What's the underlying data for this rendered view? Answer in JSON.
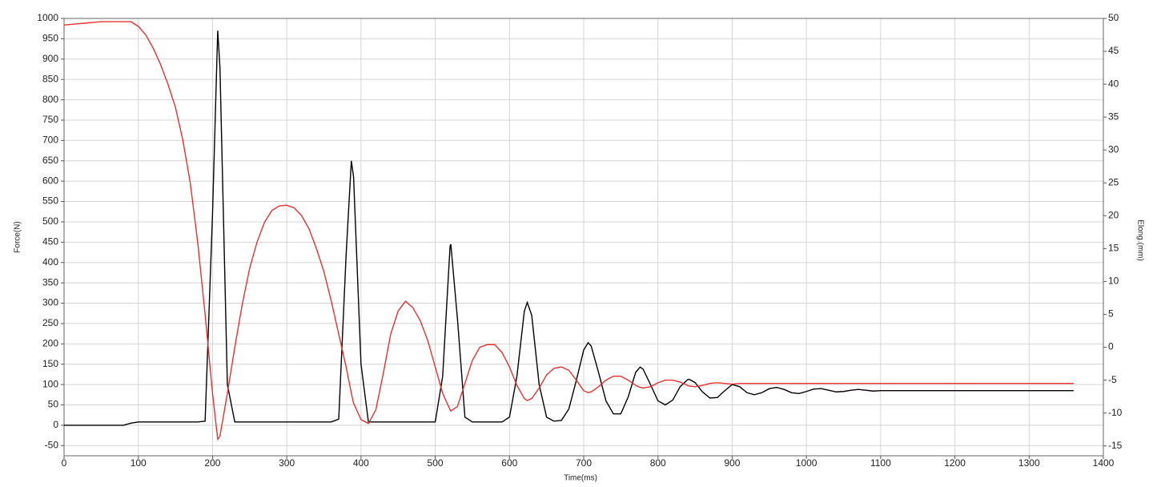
{
  "chart_data": {
    "type": "line",
    "x_label": "Time(ms)",
    "y_label": "Force(N)",
    "y2_label": "Elong.(mm)",
    "x": [
      0,
      10,
      20,
      30,
      40,
      50,
      60,
      70,
      80,
      90,
      100,
      110,
      120,
      130,
      140,
      150,
      160,
      170,
      180,
      190,
      200,
      207,
      210,
      220,
      230,
      240,
      250,
      260,
      270,
      280,
      290,
      300,
      310,
      320,
      330,
      340,
      350,
      360,
      370,
      380,
      387,
      390,
      400,
      410,
      420,
      430,
      440,
      450,
      460,
      470,
      480,
      490,
      500,
      510,
      520,
      521,
      530,
      540,
      550,
      560,
      570,
      580,
      590,
      600,
      610,
      620,
      624,
      630,
      640,
      650,
      660,
      670,
      680,
      690,
      700,
      706,
      710,
      720,
      730,
      740,
      750,
      760,
      770,
      776,
      780,
      790,
      800,
      810,
      820,
      830,
      840,
      842,
      850,
      860,
      870,
      880,
      890,
      900,
      910,
      920,
      930,
      940,
      950,
      960,
      970,
      980,
      990,
      1000,
      1010,
      1020,
      1030,
      1040,
      1050,
      1060,
      1070,
      1080,
      1090,
      1100,
      1110,
      1120,
      1130,
      1140,
      1150,
      1160,
      1170,
      1180,
      1190,
      1200,
      1210,
      1220,
      1230,
      1240,
      1250,
      1260,
      1270,
      1280,
      1290,
      1300,
      1310,
      1320,
      1330,
      1340,
      1350,
      1360
    ],
    "series": [
      {
        "color": "#000000",
        "values": [
          0,
          0,
          0,
          0,
          0,
          0,
          0,
          0,
          0,
          5,
          8,
          8,
          8,
          8,
          8,
          8,
          8,
          8,
          8,
          10,
          520,
          970,
          880,
          100,
          8,
          8,
          8,
          8,
          8,
          8,
          8,
          8,
          8,
          8,
          8,
          8,
          8,
          8,
          15,
          420,
          650,
          610,
          150,
          8,
          8,
          8,
          8,
          8,
          8,
          8,
          8,
          8,
          8,
          120,
          440,
          445,
          260,
          20,
          8,
          8,
          8,
          8,
          8,
          20,
          120,
          280,
          302,
          270,
          100,
          20,
          10,
          12,
          40,
          110,
          185,
          203,
          195,
          130,
          60,
          28,
          28,
          70,
          130,
          143,
          138,
          100,
          60,
          50,
          62,
          95,
          112,
          113,
          105,
          82,
          67,
          68,
          85,
          100,
          95,
          80,
          75,
          80,
          90,
          93,
          88,
          80,
          78,
          83,
          89,
          90,
          86,
          82,
          83,
          86,
          88,
          86,
          84,
          85,
          85,
          85,
          85,
          85,
          85,
          85,
          85,
          85,
          85,
          85,
          85,
          85,
          85,
          85,
          85,
          85,
          85,
          85,
          85,
          85,
          85,
          85,
          85,
          85,
          85,
          85
        ]
      },
      {
        "color": "#e8312f",
        "axis": "y2",
        "values": [
          49,
          49.1,
          49.2,
          49.3,
          49.4,
          49.5,
          49.5,
          49.5,
          49.5,
          49.5,
          48.8,
          47.5,
          45.5,
          43,
          40,
          36.5,
          31.5,
          25,
          16,
          5,
          -7,
          -14,
          -13.5,
          -7,
          0,
          6.5,
          12,
          16,
          19,
          20.8,
          21.5,
          21.6,
          21.2,
          20,
          18,
          15,
          11.5,
          7,
          2,
          -3,
          -7,
          -8.5,
          -11,
          -11.6,
          -9.5,
          -4,
          2,
          5.5,
          7,
          6,
          4,
          1,
          -3,
          -7,
          -9.5,
          -9.7,
          -9,
          -5.5,
          -2,
          0,
          0.4,
          0.4,
          -0.8,
          -3,
          -5.8,
          -7.8,
          -8.1,
          -7.8,
          -6.2,
          -4.2,
          -3.2,
          -3,
          -3.5,
          -5,
          -6.6,
          -6.9,
          -6.8,
          -6,
          -5,
          -4.4,
          -4.4,
          -5,
          -5.8,
          -6.1,
          -6.2,
          -6,
          -5.4,
          -5,
          -5,
          -5.3,
          -5.8,
          -5.9,
          -6,
          -5.8,
          -5.5,
          -5.4,
          -5.5,
          -5.6,
          -5.5,
          -5.5,
          -5.5,
          -5.5,
          -5.5,
          -5.5,
          -5.5,
          -5.5,
          -5.5,
          -5.5,
          -5.5,
          -5.5,
          -5.5,
          -5.5,
          -5.5,
          -5.5,
          -5.5,
          -5.5,
          -5.5,
          -5.5,
          -5.5,
          -5.5,
          -5.5,
          -5.5,
          -5.5,
          -5.5,
          -5.5,
          -5.5,
          -5.5,
          -5.5,
          -5.5,
          -5.5,
          -5.5,
          -5.5,
          -5.5,
          -5.5,
          -5.5,
          -5.5,
          -5.5,
          -5.5,
          -5.5,
          -5.5,
          -5.5,
          -5.5,
          -5.5,
          -5.5
        ]
      }
    ],
    "xlim": [
      0,
      1400
    ],
    "xticks": [
      0,
      100,
      200,
      300,
      400,
      500,
      600,
      700,
      800,
      900,
      1000,
      1100,
      1200,
      1300,
      1400
    ],
    "ylim": [
      -75,
      1000
    ],
    "yticks": [
      -50,
      0,
      50,
      100,
      150,
      200,
      250,
      300,
      350,
      400,
      450,
      500,
      550,
      600,
      650,
      700,
      750,
      800,
      850,
      900,
      950,
      1000
    ],
    "y2lim": [
      -16.5,
      50
    ],
    "y2ticks": [
      -15,
      -10,
      -5,
      0,
      5,
      10,
      15,
      20,
      25,
      30,
      35,
      40,
      45,
      50
    ],
    "grid": true
  }
}
